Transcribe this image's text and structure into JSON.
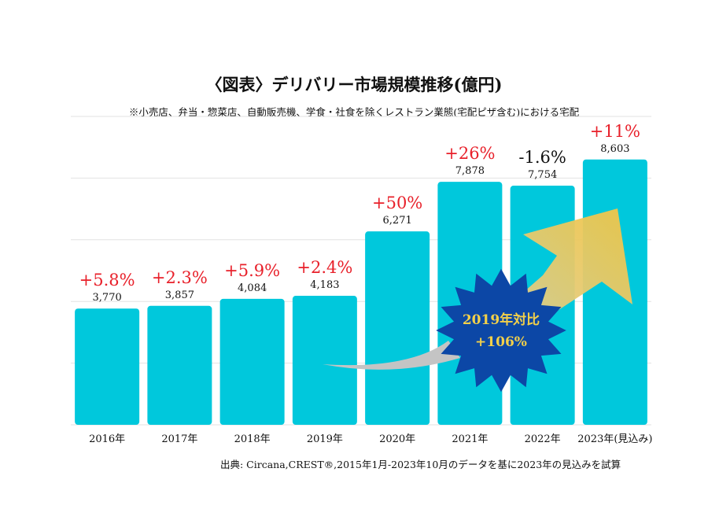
{
  "chart_data": {
    "type": "bar",
    "title": "〈図表〉デリバリー市場規模推移(億円)",
    "subtitle": "※小売店、弁当・惣菜店、自動販売機、学食・社食を除くレストラン業態(宅配ピザ含む)における宅配",
    "categories": [
      "2016年",
      "2017年",
      "2018年",
      "2019年",
      "2020年",
      "2021年",
      "2022年",
      "2023年(見込み)"
    ],
    "values": [
      3770,
      3857,
      4084,
      4183,
      6271,
      7878,
      7754,
      8603
    ],
    "value_labels": [
      "3,770",
      "3,857",
      "4,084",
      "4,183",
      "6,271",
      "7,878",
      "7,754",
      "8,603"
    ],
    "growth_labels": [
      "+5.8%",
      "+2.3%",
      "+5.9%",
      "+2.4%",
      "+50%",
      "+26%",
      "-1.6%",
      "+11%"
    ],
    "ylim": [
      0,
      10000
    ],
    "grid": true,
    "colors": {
      "bar": "#00C8DC",
      "positive": "#E8202A",
      "negative": "#111111",
      "badge": "#0C47A6",
      "badge_text": "#F2D04A",
      "arrow": "#F0C54A"
    },
    "annotation": {
      "line1": "2019年対比",
      "line2": "+106%"
    },
    "source": "出典: Circana,CREST®,2015年1月-2023年10月のデータを基に2023年の見込みを試算"
  }
}
